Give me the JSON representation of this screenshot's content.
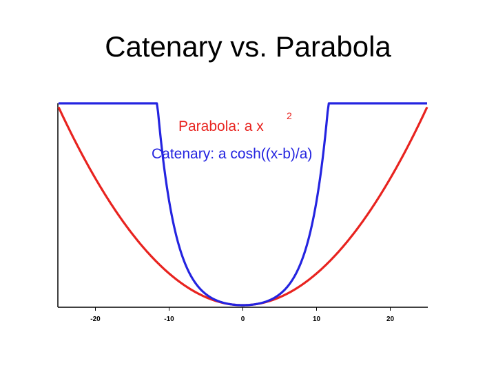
{
  "slide": {
    "title": "Catenary vs. Parabola"
  },
  "colors": {
    "parabola": "#e8231f",
    "catenary": "#2424e0",
    "axis": "#000000"
  },
  "chart_data": {
    "type": "line",
    "title": "",
    "xlabel": "",
    "ylabel": "",
    "xlim": [
      -25,
      25
    ],
    "ylim": [
      0,
      135
    ],
    "grid": false,
    "x_ticks": [
      -20,
      -10,
      0,
      10,
      20
    ],
    "x_tick_labels": [
      "-20",
      "-10",
      "0",
      "10",
      "20"
    ],
    "legend": {
      "placement": "top-center",
      "parabola_label": "Parabola: a x",
      "parabola_superscript": "2",
      "catenary_label": "Catenary: a cosh((x-b)/a)"
    },
    "series": [
      {
        "name": "Parabola: a x2",
        "color": "#e8231f",
        "formula": "a*x^2",
        "a": 0.2,
        "x_range": [
          -25,
          25
        ]
      },
      {
        "name": "Catenary: a cosh((x-b)/a)",
        "color": "#2424e0",
        "formula": "a*cosh((x-b)/a) - a",
        "a": 2.5,
        "b": 0,
        "x_range": [
          -25,
          25
        ]
      }
    ]
  }
}
